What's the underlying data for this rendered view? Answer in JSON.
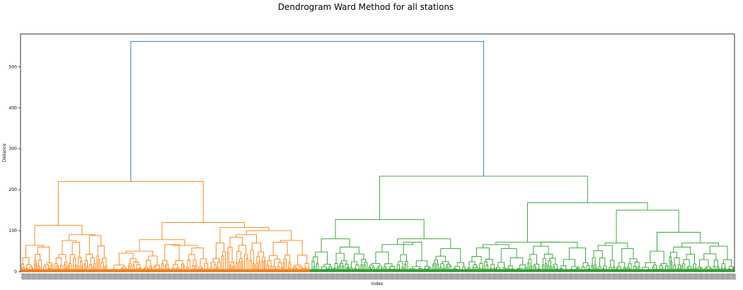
{
  "chart_data": {
    "type": "dendrogram",
    "title": "Dendrogram Ward Method for all stations",
    "xlabel": "Index",
    "ylabel": "Distance",
    "ylim": [
      0,
      580
    ],
    "yticks": [
      0,
      100,
      200,
      300,
      400,
      500
    ],
    "colors": {
      "cluster_1": "#ff7f0e",
      "cluster_2": "#2ca02c",
      "root": "#1f77b4"
    },
    "grid": false,
    "merges": [
      {
        "cluster": "root",
        "height": 562,
        "children": [
          "cluster_1",
          "cluster_2"
        ]
      },
      {
        "cluster": "cluster_1",
        "height": 220,
        "children": [
          "cluster_1a",
          "cluster_1b"
        ]
      },
      {
        "cluster": "cluster_1a",
        "height": 113
      },
      {
        "cluster": "cluster_1b",
        "height": 120
      },
      {
        "cluster": "cluster_2",
        "height": 233,
        "children": [
          "cluster_2a",
          "cluster_2b"
        ]
      },
      {
        "cluster": "cluster_2a",
        "height": 127
      },
      {
        "cluster": "cluster_2b",
        "height": 168
      }
    ]
  }
}
